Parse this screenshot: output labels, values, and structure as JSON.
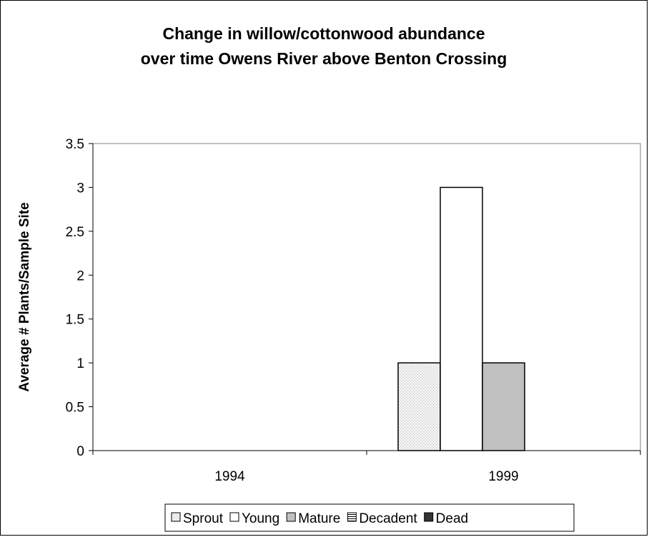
{
  "chart_data": {
    "type": "bar",
    "title_lines": [
      "Change in willow/cottonwood abundance",
      "over time Owens River above Benton Crossing"
    ],
    "xlabel": "",
    "ylabel": "Average # Plants/Sample Site",
    "categories": [
      "1994",
      "1999"
    ],
    "series": [
      {
        "name": "Sprout",
        "values": [
          0,
          1
        ],
        "color": "#eeeeee",
        "pattern": "dotted"
      },
      {
        "name": "Young",
        "values": [
          0,
          3
        ],
        "color": "#ffffff",
        "pattern": "none"
      },
      {
        "name": "Mature",
        "values": [
          0,
          1
        ],
        "color": "#c0c0c0",
        "pattern": "none"
      },
      {
        "name": "Decadent",
        "values": [
          0,
          0
        ],
        "color": "#ffffff",
        "pattern": "horizontal-lines"
      },
      {
        "name": "Dead",
        "values": [
          0,
          0
        ],
        "color": "#333333",
        "pattern": "none"
      }
    ],
    "ylim": [
      0,
      3.5
    ],
    "yticks": [
      0,
      0.5,
      1,
      1.5,
      2,
      2.5,
      3,
      3.5
    ],
    "ytick_labels": [
      "0",
      "0.5",
      "1",
      "1.5",
      "2",
      "2.5",
      "3",
      "3.5"
    ],
    "grid": false,
    "legend_position": "bottom"
  }
}
